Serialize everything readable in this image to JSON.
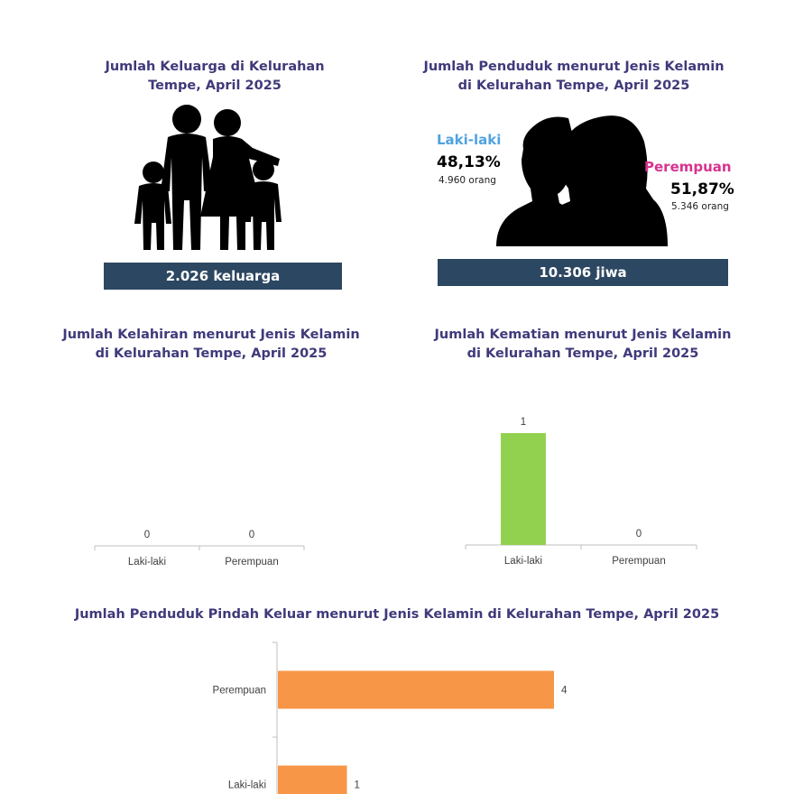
{
  "panels": {
    "keluarga": {
      "title": "Jumlah Keluarga di Kelurahan\nTempe, April 2025",
      "value_label": "2.026 keluarga",
      "icon": "family-icon"
    },
    "penduduk": {
      "title": "Jumlah Penduduk menurut Jenis Kelamin\ndi Kelurahan Tempe, April 2025",
      "icon": "male-female-silhouette-icon",
      "male": {
        "label": "Laki-laki",
        "percent": "48,13%",
        "count": "4.960 orang",
        "color": "#4fa3e0"
      },
      "female": {
        "label": "Perempuan",
        "percent": "51,87%",
        "count": "5.346 orang",
        "color": "#d6338f"
      },
      "total_label": "10.306 jiwa"
    }
  },
  "colors": {
    "title": "#3f3a7a",
    "banner": "#2c4761",
    "bar_green": "#92d050",
    "bar_orange": "#f79646",
    "axis": "#bfbfbf"
  },
  "chart_data": [
    {
      "type": "bar",
      "title": "Jumlah Kelahiran menurut Jenis Kelamin\ndi Kelurahan Tempe, April 2025",
      "categories": [
        "Laki-laki",
        "Perempuan"
      ],
      "values": [
        0,
        0
      ],
      "ylim": [
        0,
        1
      ],
      "color": "#92d050"
    },
    {
      "type": "bar",
      "title": "Jumlah Kematian menurut Jenis Kelamin\ndi Kelurahan Tempe, April 2025",
      "categories": [
        "Laki-laki",
        "Perempuan"
      ],
      "values": [
        1,
        0
      ],
      "ylim": [
        0,
        1
      ],
      "color": "#92d050"
    },
    {
      "type": "bar",
      "orientation": "horizontal",
      "title": "Jumlah Penduduk Pindah Keluar menurut Jenis Kelamin di Kelurahan Tempe, April 2025",
      "categories": [
        "Perempuan",
        "Laki-laki"
      ],
      "values": [
        4,
        1
      ],
      "xlim": [
        0,
        4
      ],
      "color": "#f79646"
    }
  ]
}
